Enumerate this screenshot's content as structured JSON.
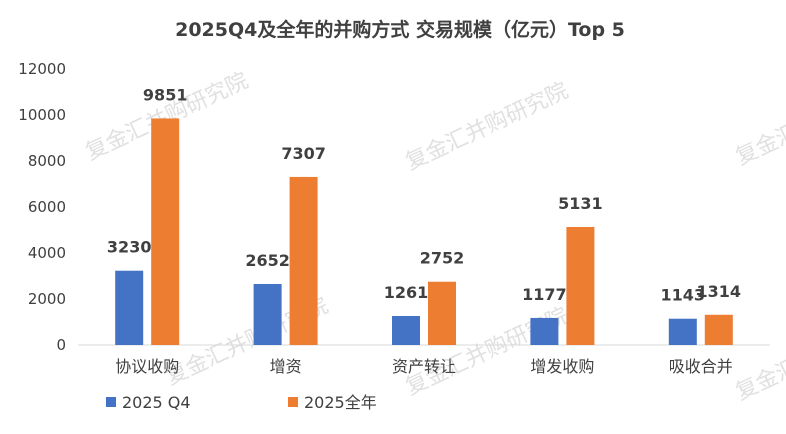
{
  "chart_data": {
    "type": "bar",
    "title": "2025Q4及全年的并购方式 交易规模（亿元）Top 5",
    "categories": [
      "协议收购",
      "增资",
      "资产转让",
      "增发收购",
      "吸收合并"
    ],
    "series": [
      {
        "name": "2025 Q4",
        "values": [
          3230,
          2652,
          1261,
          1177,
          1143
        ],
        "color": "#4472C4"
      },
      {
        "name": "2025全年",
        "values": [
          9851,
          7307,
          2752,
          5131,
          1314
        ],
        "color": "#ED7D31"
      }
    ],
    "ylim": [
      0,
      12000
    ],
    "yticks": [
      0,
      2000,
      4000,
      6000,
      8000,
      10000,
      12000
    ],
    "grid": false,
    "legend_position": "bottom-left"
  },
  "watermark": "复金汇并购研究院"
}
